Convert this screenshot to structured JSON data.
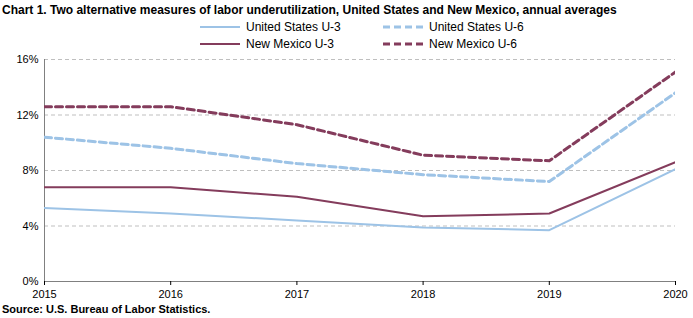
{
  "chart_data": {
    "type": "line",
    "title": "Chart 1. Two alternative measures of labor underutilization, United States and New Mexico, annual averages",
    "source": "Source: U.S. Bureau of Labor Statistics.",
    "x": [
      2015,
      2016,
      2017,
      2018,
      2019,
      2020
    ],
    "xlim": [
      2015,
      2020
    ],
    "xticks": [
      2015,
      2016,
      2017,
      2018,
      2019,
      2020
    ],
    "ylim": [
      0,
      16
    ],
    "yticks": [
      {
        "value": 0,
        "label": "0%"
      },
      {
        "value": 4,
        "label": "4%"
      },
      {
        "value": 8,
        "label": "8%"
      },
      {
        "value": 12,
        "label": "12%"
      },
      {
        "value": 16,
        "label": "16%"
      }
    ],
    "grid": true,
    "legend": "top",
    "series": [
      {
        "name": "United States U-3",
        "color": "#9dc3e6",
        "line_style": "solid",
        "values": [
          5.3,
          4.9,
          4.4,
          3.9,
          3.7,
          8.1
        ]
      },
      {
        "name": "United States U-6",
        "color": "#9dc3e6",
        "line_style": "dashed",
        "values": [
          10.4,
          9.6,
          8.5,
          7.7,
          7.2,
          13.6
        ]
      },
      {
        "name": "New Mexico U-3",
        "color": "#843c5c",
        "line_style": "solid",
        "values": [
          6.8,
          6.8,
          6.1,
          4.7,
          4.9,
          8.6
        ]
      },
      {
        "name": "New Mexico U-6",
        "color": "#843c5c",
        "line_style": "dashed",
        "values": [
          12.6,
          12.6,
          11.3,
          9.1,
          8.7,
          15.1
        ]
      }
    ]
  }
}
